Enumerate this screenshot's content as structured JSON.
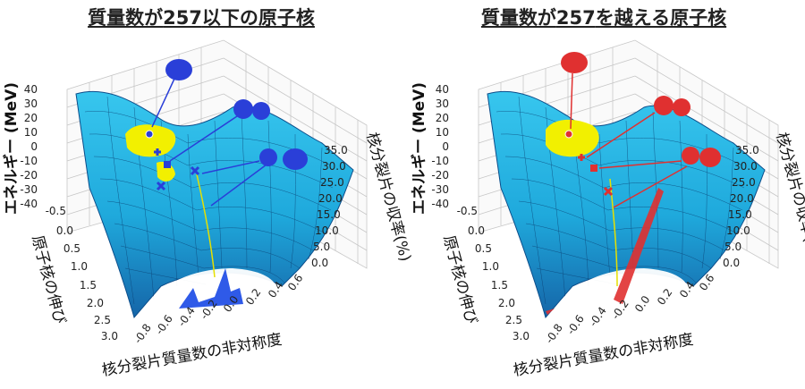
{
  "panels": [
    {
      "title_prefix": "質量数が",
      "title_number": "257",
      "title_suffix": "以下の原子核",
      "accent": "#2a3fd8",
      "highlight_mass_distribution": "#2f5ae8"
    },
    {
      "title_prefix": "質量数が",
      "title_number": "257",
      "title_suffix": "を越える原子核",
      "accent": "#e03030",
      "highlight_mass_distribution": "#e03030"
    }
  ],
  "axes": {
    "energy_label": "エネルギー (MeV)",
    "energy_ticks": [
      "40",
      "30",
      "20",
      "10",
      "0",
      "-10",
      "-20",
      "-30",
      "-40"
    ],
    "elongation_label": "原子核の伸び",
    "elongation_ticks": [
      "-0.5",
      "0.0",
      "0.5",
      "1.0",
      "1.5",
      "2.0",
      "2.5",
      "3.0"
    ],
    "asymmetry_label": "核分裂片質量数の非対称度",
    "asymmetry_ticks": [
      "-0.8",
      "-0.6",
      "-0.4",
      "-0.2",
      "0.0",
      "0.2",
      "0.4",
      "0.6"
    ],
    "yield_label": "核分裂片の収率(%)",
    "yield_ticks": [
      "0.0",
      "5.0",
      "10.0",
      "15.0",
      "20.0",
      "25.0",
      "30.0",
      "35.0"
    ]
  },
  "colors": {
    "surface": "#1fb4e0",
    "surface_dark": "#1377b8",
    "trajectory": "#f2f000",
    "grid": "#c7c7c7"
  }
}
